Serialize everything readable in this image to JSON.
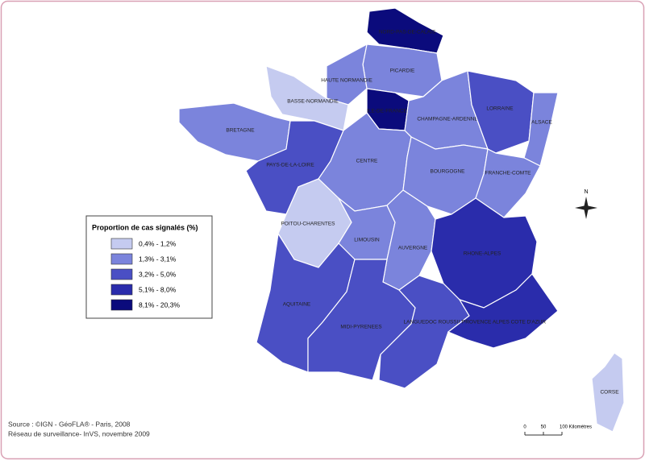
{
  "legend": {
    "title": "Proportion de cas signalés (%)",
    "items": [
      {
        "label": "0,4% - 1,2%",
        "color": "#c5cbf0"
      },
      {
        "label": "1,3% - 3,1%",
        "color": "#7b84dc"
      },
      {
        "label": "3,2% - 5,0%",
        "color": "#4a4fc4"
      },
      {
        "label": "5,1% - 8,0%",
        "color": "#2a2cab"
      },
      {
        "label": "8,1% - 20,3%",
        "color": "#0b0b7c"
      }
    ]
  },
  "regions": [
    {
      "name": "NORD-PAS-DE-CALAIS",
      "class": 4
    },
    {
      "name": "PICARDIE",
      "class": 1
    },
    {
      "name": "HAUTE NORMANDIE",
      "class": 1
    },
    {
      "name": "BASSE-NORMANDIE",
      "class": 0
    },
    {
      "name": "ILE-DE-FRANCE",
      "class": 4
    },
    {
      "name": "CHAMPAGNE-ARDENNE",
      "class": 1
    },
    {
      "name": "LORRAINE",
      "class": 2
    },
    {
      "name": "ALSACE",
      "class": 1
    },
    {
      "name": "BRETAGNE",
      "class": 1
    },
    {
      "name": "PAYS-DE-LA-LOIRE",
      "class": 2
    },
    {
      "name": "CENTRE",
      "class": 1
    },
    {
      "name": "BOURGOGNE",
      "class": 1
    },
    {
      "name": "FRANCHE-COMTE",
      "class": 1
    },
    {
      "name": "POITOU-CHARENTES",
      "class": 0
    },
    {
      "name": "LIMOUSIN",
      "class": 1
    },
    {
      "name": "AUVERGNE",
      "class": 1
    },
    {
      "name": "RHONE-ALPES",
      "class": 3
    },
    {
      "name": "AQUITAINE",
      "class": 2
    },
    {
      "name": "MIDI-PYRENEES",
      "class": 2
    },
    {
      "name": "LANGUEDOC ROUSSILLON",
      "class": 2
    },
    {
      "name": "PROVENCE ALPES COTE D'AZUR",
      "class": 3
    },
    {
      "name": "CORSE",
      "class": 0
    }
  ],
  "north": "N",
  "scale_labels": [
    "0",
    "50",
    "100 Kilomètres"
  ],
  "source": [
    "Source : ©IGN - GéoFLA® - Paris, 2008",
    "Réseau de surveillance- InVS, novembre 2009"
  ]
}
